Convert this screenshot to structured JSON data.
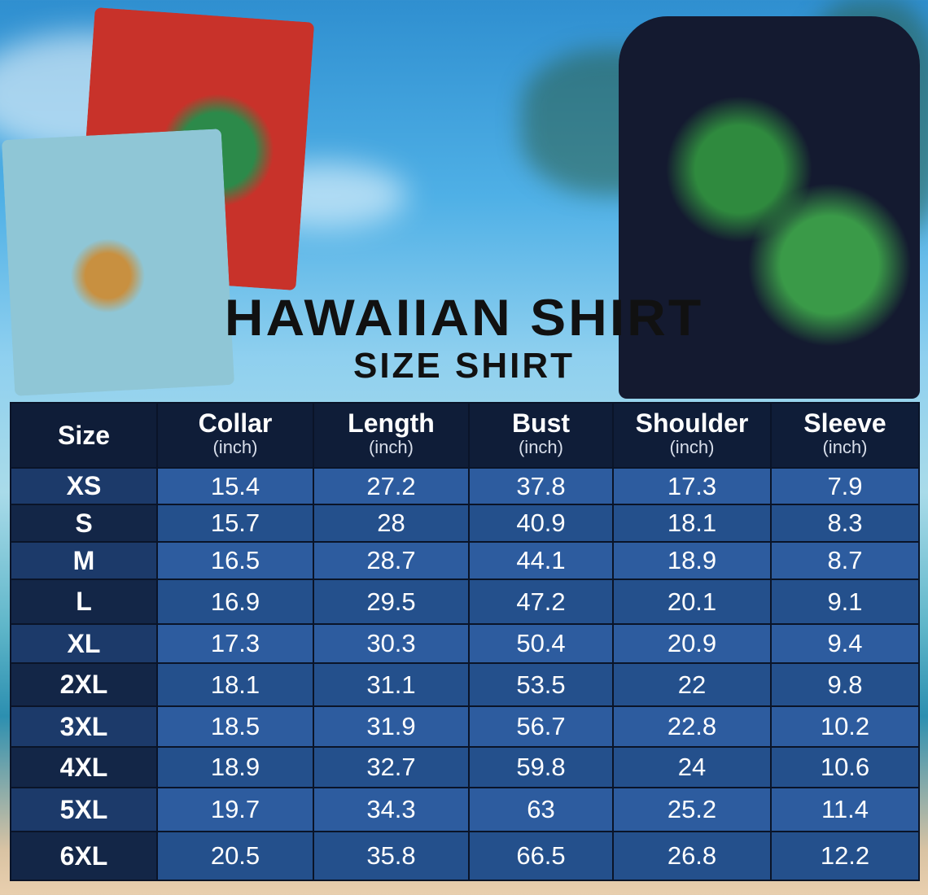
{
  "title": "HAWAIIAN SHIRT",
  "subtitle": "SIZE SHIRT",
  "table": {
    "headers": [
      {
        "label": "Size",
        "unit": ""
      },
      {
        "label": "Collar",
        "unit": "(inch)"
      },
      {
        "label": "Length",
        "unit": "(inch)"
      },
      {
        "label": "Bust",
        "unit": "(inch)"
      },
      {
        "label": "Shoulder",
        "unit": "(inch)"
      },
      {
        "label": "Sleeve",
        "unit": "(inch)"
      }
    ],
    "rows": [
      [
        "XS",
        "15.4",
        "27.2",
        "37.8",
        "17.3",
        "7.9"
      ],
      [
        "S",
        "15.7",
        "28",
        "40.9",
        "18.1",
        "8.3"
      ],
      [
        "M",
        "16.5",
        "28.7",
        "44.1",
        "18.9",
        "8.7"
      ],
      [
        "L",
        "16.9",
        "29.5",
        "47.2",
        "20.1",
        "9.1"
      ],
      [
        "XL",
        "17.3",
        "30.3",
        "50.4",
        "20.9",
        "9.4"
      ],
      [
        "2XL",
        "18.1",
        "31.1",
        "53.5",
        "22",
        "9.8"
      ],
      [
        "3XL",
        "18.5",
        "31.9",
        "56.7",
        "22.8",
        "10.2"
      ],
      [
        "4XL",
        "18.9",
        "32.7",
        "59.8",
        "24",
        "10.6"
      ],
      [
        "5XL",
        "19.7",
        "34.3",
        "63",
        "25.2",
        "11.4"
      ],
      [
        "6XL",
        "20.5",
        "35.8",
        "66.5",
        "26.8",
        "12.2"
      ]
    ]
  },
  "colors": {
    "header": "#0f1d38",
    "row_light": "#2d5c9f",
    "row_dark": "#24508c",
    "text": "#ffffff"
  }
}
